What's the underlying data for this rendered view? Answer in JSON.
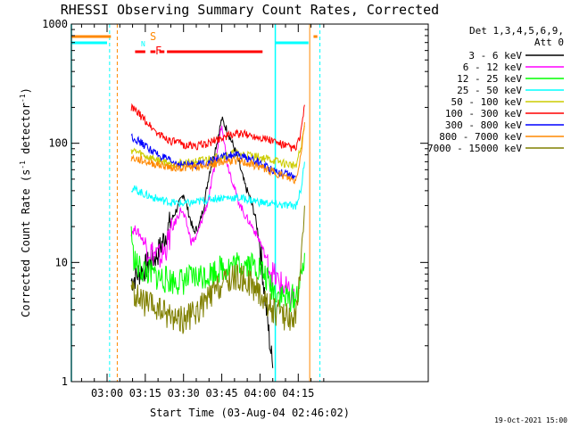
{
  "chart_data": {
    "type": "line",
    "title": "RHESSI Observing Summary Count Rates, Corrected",
    "xlabel": "Start Time (03-Aug-04 02:46:02)",
    "ylabel": "Corrected Count Rate (s",
    "ylabel_sup1": "-1",
    "ylabel_mid": " detector",
    "ylabel_sup2": "-1",
    "ylabel_end": ")",
    "y_scale": "log",
    "ylim": [
      1,
      1000
    ],
    "y_ticks": [
      {
        "v": 1,
        "label": "1"
      },
      {
        "v": 10,
        "label": "10"
      },
      {
        "v": 100,
        "label": "100"
      },
      {
        "v": 1000,
        "label": "1000"
      }
    ],
    "xlim_minutes": [
      46,
      86
    ],
    "x_ticks": [
      {
        "m": 60,
        "label": "03:00"
      },
      {
        "m": 75,
        "label": "03:15"
      },
      {
        "m": 90,
        "label": "03:30"
      },
      {
        "m": 105,
        "label": "03:45"
      },
      {
        "m": 120,
        "label": "04:00"
      },
      {
        "m": 135,
        "label": "04:15"
      }
    ],
    "legend_header": [
      "Det 1,3,4,5,6,9,",
      "Att 0"
    ],
    "legend_position": "right",
    "series": [
      {
        "name": "3 - 6 keV",
        "color": "#000000",
        "points": [
          [
            69.5,
            7
          ],
          [
            72,
            8
          ],
          [
            75,
            9
          ],
          [
            80,
            12
          ],
          [
            85,
            22
          ],
          [
            88,
            30
          ],
          [
            90,
            38
          ],
          [
            92,
            26
          ],
          [
            94,
            18
          ],
          [
            96,
            20
          ],
          [
            98,
            30
          ],
          [
            100,
            55
          ],
          [
            103,
            100
          ],
          [
            105,
            160
          ],
          [
            107,
            130
          ],
          [
            110,
            90
          ],
          [
            112,
            65
          ],
          [
            114,
            45
          ],
          [
            116,
            35
          ],
          [
            118,
            25
          ],
          [
            120,
            14
          ],
          [
            122,
            5
          ],
          [
            124,
            2
          ],
          [
            125,
            1.3
          ]
        ]
      },
      {
        "name": "6 - 12 keV",
        "color": "#ff00ff",
        "points": [
          [
            69.5,
            18
          ],
          [
            71,
            19
          ],
          [
            73,
            17
          ],
          [
            75,
            14
          ],
          [
            78,
            12
          ],
          [
            81,
            11
          ],
          [
            83,
            13
          ],
          [
            86,
            20
          ],
          [
            89,
            28
          ],
          [
            91,
            22
          ],
          [
            93,
            15
          ],
          [
            95,
            16
          ],
          [
            97,
            22
          ],
          [
            100,
            35
          ],
          [
            103,
            80
          ],
          [
            105,
            150
          ],
          [
            107,
            70
          ],
          [
            109,
            50
          ],
          [
            111,
            35
          ],
          [
            114,
            25
          ],
          [
            117,
            20
          ],
          [
            120,
            15
          ],
          [
            123,
            10
          ],
          [
            125,
            8
          ],
          [
            127,
            7
          ],
          [
            130,
            6
          ],
          [
            132,
            5
          ],
          [
            133.5,
            5
          ]
        ]
      },
      {
        "name": "12 - 25 keV",
        "color": "#00ff00",
        "points": [
          [
            69.5,
            20
          ],
          [
            70,
            12
          ],
          [
            72,
            9
          ],
          [
            75,
            8.5
          ],
          [
            80,
            7.5
          ],
          [
            85,
            7
          ],
          [
            90,
            7
          ],
          [
            95,
            7.5
          ],
          [
            100,
            8
          ],
          [
            105,
            9
          ],
          [
            110,
            9.5
          ],
          [
            115,
            10
          ],
          [
            120,
            9
          ],
          [
            123,
            7
          ],
          [
            125,
            6
          ],
          [
            130,
            5
          ],
          [
            134,
            5
          ],
          [
            136,
            7
          ],
          [
            137.5,
            12
          ]
        ]
      },
      {
        "name": "25 - 50 keV",
        "color": "#00ffff",
        "points": [
          [
            69.5,
            42
          ],
          [
            72,
            40
          ],
          [
            75,
            37
          ],
          [
            80,
            34
          ],
          [
            85,
            32
          ],
          [
            90,
            31
          ],
          [
            95,
            32
          ],
          [
            100,
            34
          ],
          [
            105,
            35
          ],
          [
            110,
            35
          ],
          [
            115,
            34
          ],
          [
            120,
            32
          ],
          [
            125,
            31
          ],
          [
            130,
            30
          ],
          [
            134,
            30
          ],
          [
            136,
            40
          ],
          [
            137.5,
            70
          ]
        ]
      },
      {
        "name": "50 - 100 keV",
        "color": "#cccc00",
        "points": [
          [
            69.5,
            88
          ],
          [
            72,
            84
          ],
          [
            75,
            78
          ],
          [
            80,
            72
          ],
          [
            85,
            68
          ],
          [
            90,
            68
          ],
          [
            95,
            70
          ],
          [
            100,
            74
          ],
          [
            105,
            78
          ],
          [
            110,
            82
          ],
          [
            115,
            80
          ],
          [
            120,
            76
          ],
          [
            125,
            72
          ],
          [
            130,
            67
          ],
          [
            134,
            65
          ],
          [
            136,
            90
          ],
          [
            137.5,
            140
          ]
        ]
      },
      {
        "name": "100 - 300 keV",
        "color": "#ff0000",
        "points": [
          [
            69.5,
            200
          ],
          [
            72,
            180
          ],
          [
            75,
            155
          ],
          [
            80,
            120
          ],
          [
            85,
            105
          ],
          [
            90,
            97
          ],
          [
            95,
            95
          ],
          [
            100,
            100
          ],
          [
            105,
            112
          ],
          [
            110,
            120
          ],
          [
            115,
            118
          ],
          [
            120,
            113
          ],
          [
            125,
            105
          ],
          [
            130,
            95
          ],
          [
            134,
            90
          ],
          [
            136,
            120
          ],
          [
            137.5,
            210
          ]
        ]
      },
      {
        "name": "300 - 800 keV",
        "color": "#0000ff",
        "points": [
          [
            69.5,
            115
          ],
          [
            72,
            105
          ],
          [
            75,
            95
          ],
          [
            80,
            80
          ],
          [
            85,
            70
          ],
          [
            90,
            66
          ],
          [
            95,
            66
          ],
          [
            100,
            70
          ],
          [
            105,
            76
          ],
          [
            110,
            80
          ],
          [
            115,
            75
          ],
          [
            120,
            68
          ],
          [
            125,
            60
          ],
          [
            130,
            55
          ],
          [
            134,
            52
          ]
        ]
      },
      {
        "name": "800 - 7000 keV",
        "color": "#ff8800",
        "points": [
          [
            69.5,
            75
          ],
          [
            72,
            73
          ],
          [
            75,
            70
          ],
          [
            80,
            66
          ],
          [
            85,
            63
          ],
          [
            90,
            62
          ],
          [
            95,
            63
          ],
          [
            100,
            66
          ],
          [
            105,
            70
          ],
          [
            110,
            72
          ],
          [
            115,
            68
          ],
          [
            120,
            63
          ],
          [
            125,
            58
          ],
          [
            130,
            52
          ],
          [
            134,
            48
          ],
          [
            136,
            80
          ],
          [
            137.5,
            150
          ]
        ]
      },
      {
        "name": "7000 - 15000 keV",
        "color": "#808000",
        "points": [
          [
            69.5,
            6
          ],
          [
            72,
            5
          ],
          [
            75,
            4.5
          ],
          [
            80,
            4
          ],
          [
            85,
            3.6
          ],
          [
            90,
            3.3
          ],
          [
            95,
            3.8
          ],
          [
            100,
            5
          ],
          [
            105,
            6.5
          ],
          [
            110,
            7.5
          ],
          [
            115,
            7
          ],
          [
            120,
            5.5
          ],
          [
            123,
            4.5
          ],
          [
            125,
            4
          ],
          [
            130,
            3.5
          ],
          [
            134,
            3.5
          ],
          [
            136,
            8
          ],
          [
            137.5,
            30
          ]
        ]
      }
    ],
    "flag_labels": {
      "S": "S",
      "F": "F",
      "N": "N"
    },
    "flags": {
      "saa_color": "#ff8800",
      "night_color": "#00ffff",
      "flare_color": "#ff0000",
      "saa_segments": [
        [
          46,
          61.5
        ],
        [
          141,
          142.5
        ]
      ],
      "night_segments": [
        [
          46,
          60
        ],
        [
          126,
          139
        ]
      ],
      "flare_segments": [
        [
          71,
          75
        ],
        [
          77,
          79
        ],
        [
          80.5,
          82.5
        ],
        [
          83.5,
          121
        ]
      ],
      "saa_lines": [
        64,
        139.5
      ],
      "night_solid_lines": [
        46,
        126
      ],
      "night_dashed_lines": [
        61,
        143.5
      ]
    },
    "footer_date": "19-Oct-2021 15:00"
  }
}
